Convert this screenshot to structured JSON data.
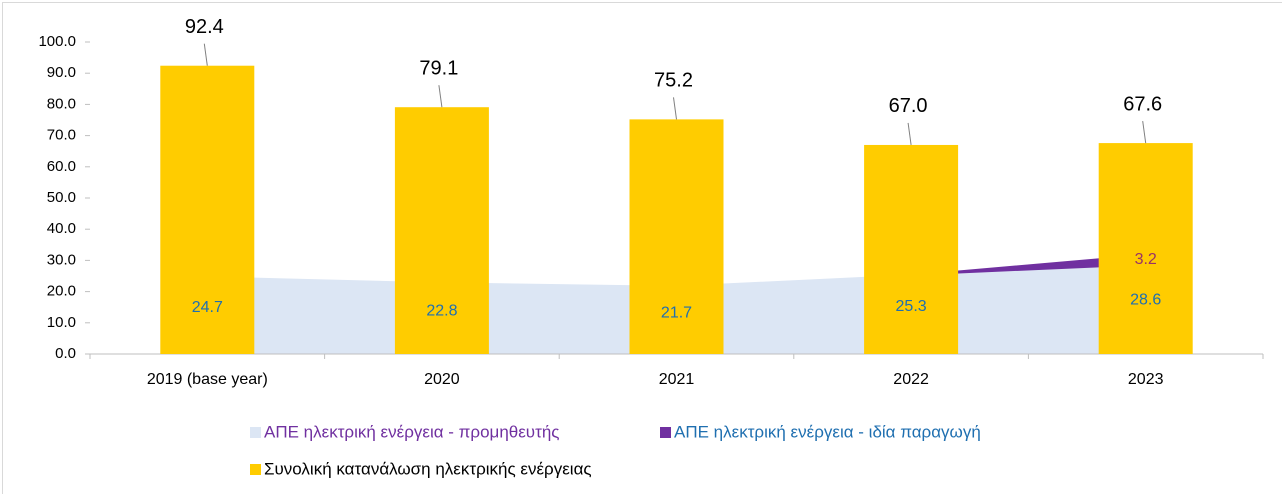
{
  "chart_data": {
    "type": "bar_area",
    "categories": [
      "2019 (base year)",
      "2020",
      "2021",
      "2022",
      "2023"
    ],
    "bar": {
      "name": "Συνολική κατανάλωση ηλεκτρικής ενέργειας",
      "color": "#ffcc00",
      "legend_text_color": "#000000",
      "values": [
        92.4,
        79.1,
        75.2,
        67.0,
        67.6
      ],
      "value_labels": [
        "92.4",
        "79.1",
        "75.2",
        "67.0",
        "67.6"
      ],
      "label_color": "#000000"
    },
    "series": [
      {
        "name": "ΑΠΕ ηλεκτρική ενέργεια - προμηθευτής",
        "color": "#dce6f4",
        "legend_text_color": "#7030a0",
        "label_color": "#1f6fb0",
        "values": [
          24.7,
          22.8,
          21.7,
          25.3,
          28.6
        ]
      },
      {
        "name": "ΑΠΕ ηλεκτρική ενέργεια - ιδία παραγωγή",
        "color": "#7030a0",
        "legend_text_color": "#1f6fb0",
        "label_color": "#993366",
        "values": [
          null,
          null,
          null,
          0,
          3.2
        ]
      }
    ],
    "ylim": [
      0,
      100
    ],
    "yticks": [
      {
        "value": 0,
        "label": "0.0"
      },
      {
        "value": 10,
        "label": "10.0"
      },
      {
        "value": 20,
        "label": "20.0"
      },
      {
        "value": 30,
        "label": "30.0"
      },
      {
        "value": 40,
        "label": "40.0"
      },
      {
        "value": 50,
        "label": "50.0"
      },
      {
        "value": 60,
        "label": "60.0"
      },
      {
        "value": 70,
        "label": "70.0"
      },
      {
        "value": 80,
        "label": "80.0"
      },
      {
        "value": 90,
        "label": "90.0"
      },
      {
        "value": 100,
        "label": "100.0"
      }
    ],
    "grid": false
  }
}
